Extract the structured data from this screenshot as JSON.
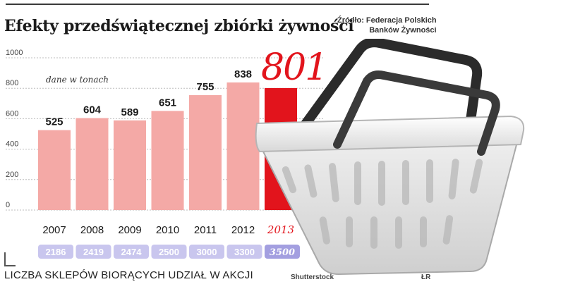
{
  "chart_data": {
    "type": "bar",
    "title": "Efekty przedświątecznej zbiórki żywności",
    "source_lines": [
      "Źródło: Federacja Polskich",
      "Banków Żywności"
    ],
    "unit_note": "dane w tonach",
    "categories": [
      "2007",
      "2008",
      "2009",
      "2010",
      "2011",
      "2012",
      "2013"
    ],
    "values": [
      525,
      604,
      589,
      651,
      755,
      838,
      801
    ],
    "highlight_label": "801",
    "ylim": [
      0,
      1000
    ],
    "yticks": [
      0,
      200,
      400,
      600,
      800,
      1000
    ],
    "grid": true,
    "xlabel": "",
    "ylabel": "",
    "store_counts": [
      "2186",
      "2419",
      "2474",
      "2500",
      "3000",
      "3300",
      "3500"
    ],
    "store_counts_label": "LICZBA SKLEPÓW BIORĄCYCH UDZIAŁ W AKCJI",
    "colors": {
      "bar": "#f4a9a6",
      "bar_highlight": "#e2141c",
      "pill": "#c9c6ee",
      "pill_highlight": "#a39fe0"
    }
  },
  "credits": {
    "photo": "Shutterstock",
    "author": "ŁR"
  }
}
